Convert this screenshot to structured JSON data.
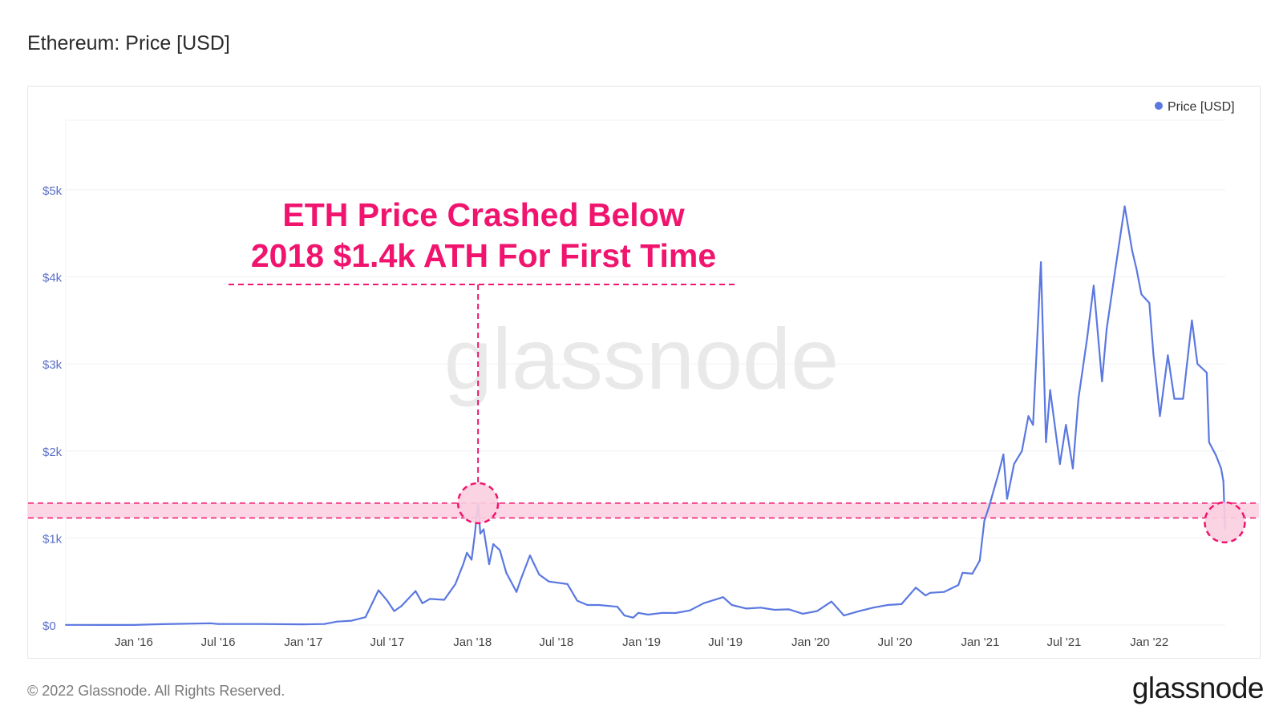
{
  "page": {
    "title": "Ethereum: Price [USD]",
    "footer": "© 2022 Glassnode. All Rights Reserved.",
    "brand": "glassnode",
    "watermark": "glassnode"
  },
  "colors": {
    "line": "#5a78e0",
    "accent": "#f0146e",
    "band": "#fbcfe0",
    "tick": "#5a6fc9",
    "grid": "#eef0f5"
  },
  "chart_data": {
    "type": "line",
    "legend": {
      "label": "Price [USD]",
      "position": "top-right"
    },
    "annotation": {
      "text_line1": "ETH Price Crashed Below",
      "text_line2": "2018 $1.4k ATH For First Time",
      "band_y": [
        1230,
        1400
      ],
      "marker_dates": [
        "2018-01-13",
        "2022-06-13"
      ]
    },
    "y_ticks": [
      {
        "label": "$0",
        "value": 0
      },
      {
        "label": "$1k",
        "value": 1000
      },
      {
        "label": "$2k",
        "value": 2000
      },
      {
        "label": "$3k",
        "value": 3000
      },
      {
        "label": "$4k",
        "value": 4000
      },
      {
        "label": "$5k",
        "value": 5000
      }
    ],
    "x_ticks": [
      {
        "label": "Jan '16",
        "date": "2016-01-01"
      },
      {
        "label": "Jul '16",
        "date": "2016-07-01"
      },
      {
        "label": "Jan '17",
        "date": "2017-01-01"
      },
      {
        "label": "Jul '17",
        "date": "2017-07-01"
      },
      {
        "label": "Jan '18",
        "date": "2018-01-01"
      },
      {
        "label": "Jul '18",
        "date": "2018-07-01"
      },
      {
        "label": "Jan '19",
        "date": "2019-01-01"
      },
      {
        "label": "Jul '19",
        "date": "2019-07-01"
      },
      {
        "label": "Jan '20",
        "date": "2020-01-01"
      },
      {
        "label": "Jul '20",
        "date": "2020-07-01"
      },
      {
        "label": "Jan '21",
        "date": "2021-01-01"
      },
      {
        "label": "Jul '21",
        "date": "2021-07-01"
      },
      {
        "label": "Jan '22",
        "date": "2022-01-01"
      }
    ],
    "x_range": [
      "2015-08-07",
      "2022-06-14"
    ],
    "y_range": [
      0,
      5800
    ],
    "series": [
      {
        "name": "Price [USD]",
        "points": [
          [
            "2015-08-07",
            2
          ],
          [
            "2015-11-01",
            1
          ],
          [
            "2016-01-01",
            1
          ],
          [
            "2016-03-01",
            10
          ],
          [
            "2016-06-15",
            20
          ],
          [
            "2016-07-01",
            12
          ],
          [
            "2016-10-01",
            12
          ],
          [
            "2017-01-01",
            8
          ],
          [
            "2017-02-15",
            12
          ],
          [
            "2017-03-15",
            40
          ],
          [
            "2017-04-15",
            50
          ],
          [
            "2017-05-15",
            90
          ],
          [
            "2017-06-12",
            400
          ],
          [
            "2017-07-01",
            280
          ],
          [
            "2017-07-16",
            160
          ],
          [
            "2017-08-01",
            220
          ],
          [
            "2017-08-31",
            390
          ],
          [
            "2017-09-15",
            250
          ],
          [
            "2017-10-01",
            300
          ],
          [
            "2017-11-01",
            290
          ],
          [
            "2017-11-25",
            470
          ],
          [
            "2017-12-12",
            700
          ],
          [
            "2017-12-20",
            830
          ],
          [
            "2017-12-30",
            750
          ],
          [
            "2018-01-06",
            1040
          ],
          [
            "2018-01-13",
            1400
          ],
          [
            "2018-01-18",
            1050
          ],
          [
            "2018-01-25",
            1100
          ],
          [
            "2018-02-06",
            700
          ],
          [
            "2018-02-15",
            930
          ],
          [
            "2018-03-01",
            860
          ],
          [
            "2018-03-15",
            600
          ],
          [
            "2018-04-06",
            380
          ],
          [
            "2018-04-15",
            520
          ],
          [
            "2018-05-05",
            800
          ],
          [
            "2018-05-25",
            580
          ],
          [
            "2018-06-15",
            500
          ],
          [
            "2018-07-25",
            470
          ],
          [
            "2018-08-15",
            280
          ],
          [
            "2018-09-06",
            230
          ],
          [
            "2018-10-01",
            230
          ],
          [
            "2018-11-10",
            210
          ],
          [
            "2018-11-25",
            110
          ],
          [
            "2018-12-14",
            85
          ],
          [
            "2018-12-25",
            140
          ],
          [
            "2019-01-15",
            120
          ],
          [
            "2019-02-15",
            140
          ],
          [
            "2019-03-15",
            138
          ],
          [
            "2019-04-15",
            168
          ],
          [
            "2019-05-15",
            250
          ],
          [
            "2019-06-26",
            320
          ],
          [
            "2019-07-15",
            230
          ],
          [
            "2019-08-15",
            190
          ],
          [
            "2019-09-15",
            200
          ],
          [
            "2019-10-15",
            175
          ],
          [
            "2019-11-15",
            180
          ],
          [
            "2019-12-15",
            130
          ],
          [
            "2020-01-15",
            160
          ],
          [
            "2020-02-15",
            270
          ],
          [
            "2020-03-13",
            110
          ],
          [
            "2020-04-15",
            160
          ],
          [
            "2020-05-15",
            200
          ],
          [
            "2020-06-15",
            230
          ],
          [
            "2020-07-15",
            240
          ],
          [
            "2020-08-15",
            430
          ],
          [
            "2020-09-05",
            340
          ],
          [
            "2020-09-15",
            370
          ],
          [
            "2020-10-15",
            380
          ],
          [
            "2020-11-15",
            460
          ],
          [
            "2020-11-24",
            600
          ],
          [
            "2020-12-15",
            590
          ],
          [
            "2020-12-31",
            740
          ],
          [
            "2021-01-10",
            1200
          ],
          [
            "2021-01-20",
            1360
          ],
          [
            "2021-02-10",
            1750
          ],
          [
            "2021-02-20",
            1960
          ],
          [
            "2021-02-28",
            1450
          ],
          [
            "2021-03-15",
            1850
          ],
          [
            "2021-04-01",
            2000
          ],
          [
            "2021-04-15",
            2400
          ],
          [
            "2021-04-25",
            2300
          ],
          [
            "2021-05-12",
            4170
          ],
          [
            "2021-05-23",
            2100
          ],
          [
            "2021-06-01",
            2700
          ],
          [
            "2021-06-22",
            1850
          ],
          [
            "2021-07-05",
            2300
          ],
          [
            "2021-07-20",
            1800
          ],
          [
            "2021-08-01",
            2600
          ],
          [
            "2021-08-20",
            3300
          ],
          [
            "2021-09-03",
            3900
          ],
          [
            "2021-09-21",
            2800
          ],
          [
            "2021-10-01",
            3400
          ],
          [
            "2021-10-20",
            4100
          ],
          [
            "2021-11-09",
            4810
          ],
          [
            "2021-11-25",
            4300
          ],
          [
            "2021-12-04",
            4100
          ],
          [
            "2021-12-15",
            3800
          ],
          [
            "2022-01-01",
            3700
          ],
          [
            "2022-01-10",
            3100
          ],
          [
            "2022-01-24",
            2400
          ],
          [
            "2022-02-10",
            3100
          ],
          [
            "2022-02-24",
            2600
          ],
          [
            "2022-03-15",
            2600
          ],
          [
            "2022-04-03",
            3500
          ],
          [
            "2022-04-15",
            3000
          ],
          [
            "2022-05-05",
            2900
          ],
          [
            "2022-05-10",
            2100
          ],
          [
            "2022-05-25",
            1950
          ],
          [
            "2022-06-05",
            1800
          ],
          [
            "2022-06-10",
            1650
          ],
          [
            "2022-06-13",
            1180
          ],
          [
            "2022-06-14",
            1110
          ]
        ]
      }
    ]
  }
}
